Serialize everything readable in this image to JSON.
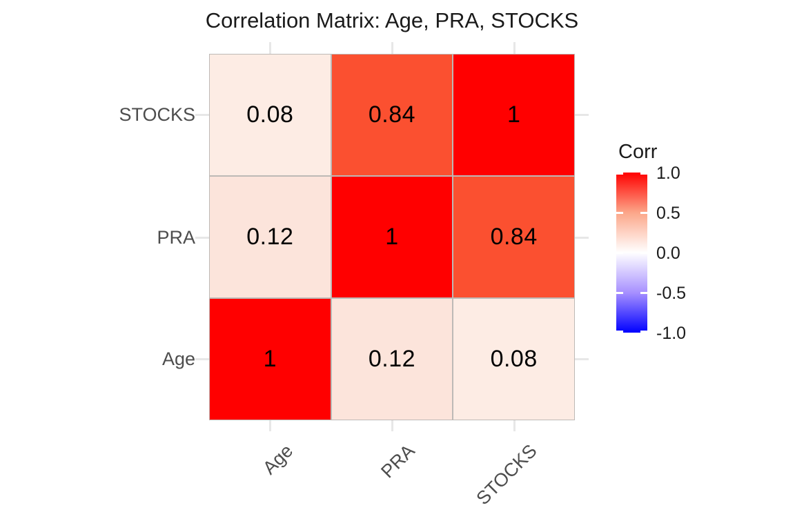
{
  "title": "Correlation Matrix: Age, PRA, STOCKS",
  "chart_data": {
    "type": "heatmap",
    "title": "Correlation Matrix: Age, PRA, STOCKS",
    "x_categories": [
      "Age",
      "PRA",
      "STOCKS"
    ],
    "y_categories_top_to_bottom": [
      "STOCKS",
      "PRA",
      "Age"
    ],
    "rows": [
      {
        "label": "STOCKS",
        "cells": [
          {
            "value": 0.08,
            "label": "0.08",
            "color": "#FDECE4"
          },
          {
            "value": 0.84,
            "label": "0.84",
            "color": "#FB5030"
          },
          {
            "value": 1,
            "label": "1",
            "color": "#FF0000"
          }
        ]
      },
      {
        "label": "PRA",
        "cells": [
          {
            "value": 0.12,
            "label": "0.12",
            "color": "#FCE4DB"
          },
          {
            "value": 1,
            "label": "1",
            "color": "#FF0000"
          },
          {
            "value": 0.84,
            "label": "0.84",
            "color": "#FB5030"
          }
        ]
      },
      {
        "label": "Age",
        "cells": [
          {
            "value": 1,
            "label": "1",
            "color": "#FF0000"
          },
          {
            "value": 0.12,
            "label": "0.12",
            "color": "#FCE4DB"
          },
          {
            "value": 0.08,
            "label": "0.08",
            "color": "#FDECE4"
          }
        ]
      }
    ],
    "legend": {
      "title": "Corr",
      "tick_labels": [
        "1.0",
        "0.5",
        "0.0",
        "-0.5",
        "-1.0"
      ],
      "range": [
        -1,
        1
      ],
      "high_color": "#FF0000",
      "mid_color": "#FFFFFF",
      "low_color": "#0000FF",
      "position": "right"
    },
    "grid": true,
    "legend_position": "right"
  },
  "colors": {
    "background": "#FFFFFF",
    "title_text": "#1A1A1A",
    "axis_text": "#4D4D4D",
    "cell_text": "#000000",
    "cell_border": "#BDB9B6",
    "gridline": "#E7E7E7"
  }
}
